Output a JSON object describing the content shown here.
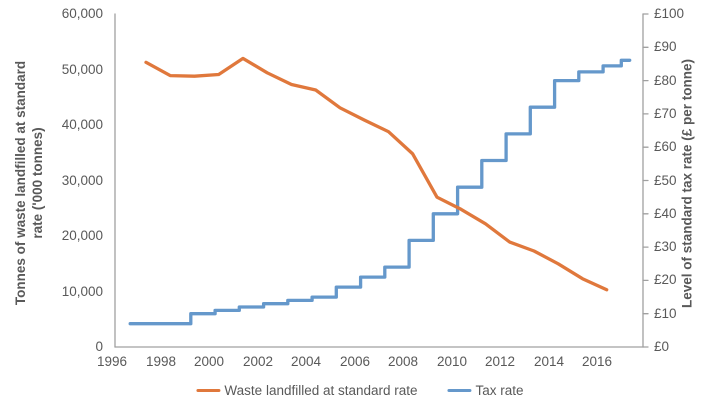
{
  "chart_data": {
    "type": "line",
    "title": "",
    "grid": false,
    "background": "#ffffff",
    "x_axis": {
      "tick_labels": [
        "1996",
        "1998",
        "2000",
        "2002",
        "2004",
        "2006",
        "2008",
        "2010",
        "2012",
        "2014",
        "2016"
      ],
      "tick_years": [
        1996,
        1998,
        2000,
        2002,
        2004,
        2006,
        2008,
        2010,
        2012,
        2014,
        2016
      ],
      "range": [
        1996.1,
        2017.9
      ]
    },
    "y_axis_left": {
      "label": "Tonnes of waste landfilled at standard rate ('000 tonnes)",
      "label_lines": [
        "Tonnes of waste landfilled at standard",
        "rate ('000 tonnes)"
      ],
      "tick_labels": [
        "0",
        "10,000",
        "20,000",
        "30,000",
        "40,000",
        "50,000",
        "60,000"
      ],
      "tick_values": [
        0,
        10000,
        20000,
        30000,
        40000,
        50000,
        60000
      ],
      "range": [
        0,
        60000
      ]
    },
    "y_axis_right": {
      "label": "Level of standard tax rate (£ per tonne)",
      "tick_labels": [
        "£0",
        "£10",
        "£20",
        "£30",
        "£40",
        "£50",
        "£60",
        "£70",
        "£80",
        "£90",
        "£100"
      ],
      "tick_values": [
        0,
        10,
        20,
        30,
        40,
        50,
        60,
        70,
        80,
        90,
        100
      ],
      "range": [
        0,
        100
      ]
    },
    "series": [
      {
        "name": "Waste landfilled at standard rate",
        "style": "line",
        "axis": "left",
        "color": "#E0783C",
        "years": [
          1997,
          1998,
          1999,
          2000,
          2001,
          2002,
          2003,
          2004,
          2005,
          2006,
          2007,
          2008,
          2009,
          2010,
          2011,
          2012,
          2013,
          2014,
          2015,
          2016
        ],
        "values": [
          51300,
          48900,
          48800,
          49100,
          52000,
          49400,
          47300,
          46300,
          43100,
          40900,
          38800,
          34800,
          27000,
          24800,
          22200,
          18900,
          17300,
          15000,
          12300,
          10300
        ],
        "plot_year_offset": 0.4
      },
      {
        "name": "Tax rate",
        "style": "step",
        "axis": "right",
        "color": "#6598CB",
        "steps": [
          [
            1996.75,
            7
          ],
          [
            1999.25,
            10
          ],
          [
            2000.25,
            11
          ],
          [
            2001.25,
            12
          ],
          [
            2002.25,
            13
          ],
          [
            2003.25,
            14
          ],
          [
            2004.25,
            15
          ],
          [
            2005.25,
            18
          ],
          [
            2006.25,
            21
          ],
          [
            2007.25,
            24
          ],
          [
            2008.25,
            32
          ],
          [
            2009.25,
            40
          ],
          [
            2010.25,
            48
          ],
          [
            2011.25,
            56
          ],
          [
            2012.25,
            64
          ],
          [
            2013.25,
            72
          ],
          [
            2014.25,
            80
          ],
          [
            2015.25,
            82.6
          ],
          [
            2016.25,
            84.4
          ],
          [
            2017.0,
            86.1
          ]
        ],
        "end_year": 2017.35
      }
    ],
    "legend": {
      "position": "bottom",
      "items": [
        "Waste landfilled at standard rate",
        "Tax rate"
      ]
    }
  },
  "colors": {
    "axis_line": "#A0A0A0",
    "tick_text": "#595959",
    "title_text": "#595959",
    "waste_line": "#E0783C",
    "tax_line": "#6598CB",
    "background": "#FFFFFF"
  }
}
